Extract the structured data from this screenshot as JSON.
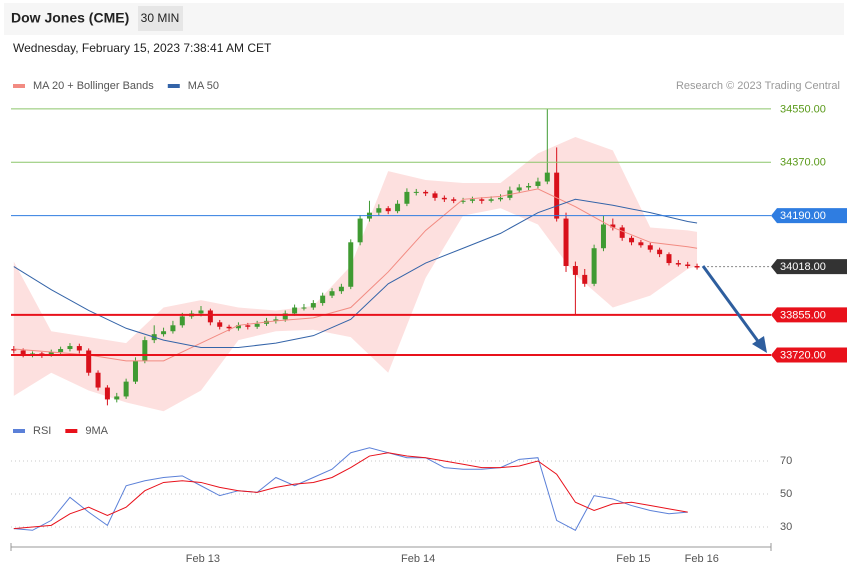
{
  "header": {
    "title": "Dow Jones (CME)",
    "interval": "30 MIN",
    "timestamp": "Wednesday, February 15, 2023 7:38:41 AM CET"
  },
  "chart_data": [
    {
      "type": "candlestick",
      "source": "Research © 2023 Trading Central",
      "up_color": "#3f9a32",
      "down_color": "#d8111b",
      "xlim": [
        -0.3,
        80.9
      ],
      "ylim": [
        33510,
        34580
      ],
      "ohlc": [
        [
          33740,
          33750,
          33725,
          33735
        ],
        [
          33735,
          33742,
          33712,
          33720
        ],
        [
          33720,
          33732,
          33712,
          33725
        ],
        [
          33725,
          33730,
          33710,
          33720
        ],
        [
          33720,
          33738,
          33714,
          33730
        ],
        [
          33730,
          33748,
          33722,
          33740
        ],
        [
          33740,
          33760,
          33732,
          33750
        ],
        [
          33750,
          33758,
          33725,
          33735
        ],
        [
          33735,
          33742,
          33650,
          33660
        ],
        [
          33660,
          33668,
          33600,
          33610
        ],
        [
          33610,
          33618,
          33550,
          33570
        ],
        [
          33570,
          33592,
          33560,
          33580
        ],
        [
          33580,
          33640,
          33572,
          33630
        ],
        [
          33630,
          33712,
          33622,
          33700
        ],
        [
          33700,
          33782,
          33692,
          33770
        ],
        [
          33770,
          33820,
          33760,
          33790
        ],
        [
          33790,
          33812,
          33782,
          33800
        ],
        [
          33800,
          33835,
          33792,
          33820
        ],
        [
          33820,
          33862,
          33812,
          33850
        ],
        [
          33850,
          33870,
          33842,
          33860
        ],
        [
          33860,
          33885,
          33850,
          33870
        ],
        [
          33870,
          33876,
          33820,
          33830
        ],
        [
          33830,
          33838,
          33806,
          33815
        ],
        [
          33815,
          33822,
          33800,
          33810
        ],
        [
          33810,
          33830,
          33802,
          33820
        ],
        [
          33820,
          33828,
          33806,
          33815
        ],
        [
          33815,
          33835,
          33808,
          33825
        ],
        [
          33825,
          33845,
          33818,
          33835
        ],
        [
          33835,
          33850,
          33826,
          33840
        ],
        [
          33840,
          33870,
          33832,
          33860
        ],
        [
          33860,
          33890,
          33852,
          33880
        ],
        [
          33880,
          33892,
          33870,
          33880
        ],
        [
          33880,
          33905,
          33872,
          33895
        ],
        [
          33895,
          33930,
          33886,
          33920
        ],
        [
          33920,
          33945,
          33912,
          33935
        ],
        [
          33935,
          33960,
          33926,
          33950
        ],
        [
          33950,
          34110,
          33942,
          34100
        ],
        [
          34100,
          34192,
          34090,
          34180
        ],
        [
          34180,
          34240,
          34170,
          34200
        ],
        [
          34200,
          34228,
          34190,
          34215
        ],
        [
          34215,
          34222,
          34195,
          34205
        ],
        [
          34205,
          34242,
          34198,
          34230
        ],
        [
          34230,
          34282,
          34222,
          34270
        ],
        [
          34270,
          34280,
          34258,
          34270
        ],
        [
          34270,
          34276,
          34256,
          34265
        ],
        [
          34265,
          34272,
          34240,
          34250
        ],
        [
          34250,
          34258,
          34236,
          34245
        ],
        [
          34245,
          34252,
          34232,
          34240
        ],
        [
          34240,
          34250,
          34230,
          34240
        ],
        [
          34240,
          34254,
          34232,
          34245
        ],
        [
          34245,
          34252,
          34230,
          34240
        ],
        [
          34240,
          34255,
          34234,
          34245
        ],
        [
          34245,
          34262,
          34238,
          34250
        ],
        [
          34250,
          34288,
          34242,
          34275
        ],
        [
          34275,
          34296,
          34266,
          34285
        ],
        [
          34285,
          34300,
          34276,
          34290
        ],
        [
          34290,
          34318,
          34282,
          34305
        ],
        [
          34305,
          34550,
          34296,
          34335
        ],
        [
          34335,
          34420,
          34170,
          34180
        ],
        [
          34180,
          34200,
          34000,
          34020
        ],
        [
          34020,
          34035,
          33858,
          33990
        ],
        [
          33990,
          34010,
          33950,
          33960
        ],
        [
          33960,
          34092,
          33952,
          34080
        ],
        [
          34080,
          34190,
          34070,
          34160
        ],
        [
          34160,
          34180,
          34140,
          34150
        ],
        [
          34150,
          34158,
          34105,
          34115
        ],
        [
          34115,
          34122,
          34090,
          34100
        ],
        [
          34100,
          34108,
          34082,
          34090
        ],
        [
          34090,
          34098,
          34066,
          34075
        ],
        [
          34075,
          34082,
          34050,
          34060
        ],
        [
          34060,
          34066,
          34022,
          34030
        ],
        [
          34030,
          34040,
          34018,
          34025
        ],
        [
          34025,
          34034,
          34012,
          34020
        ],
        [
          34020,
          34028,
          34008,
          34015
        ]
      ],
      "overlays": [
        {
          "name": "MA 20 + Bollinger Bands",
          "color": "#f28b82",
          "band_color": "#fde0df",
          "x": [
            0,
            4,
            8,
            12,
            16,
            20,
            24,
            28,
            32,
            36,
            40,
            44,
            48,
            52,
            56,
            60,
            64,
            68,
            72,
            73
          ],
          "values": [
            33740,
            33730,
            33720,
            33700,
            33700,
            33760,
            33820,
            33835,
            33845,
            33880,
            34000,
            34140,
            34245,
            34255,
            34280,
            34220,
            34150,
            34100,
            34085,
            34080
          ],
          "upper": [
            34035,
            33800,
            33780,
            33760,
            33880,
            33905,
            33880,
            33870,
            33885,
            34020,
            34340,
            34310,
            34300,
            34300,
            34400,
            34455,
            34410,
            34150,
            34140,
            34135
          ],
          "lower": [
            33582,
            33660,
            33600,
            33560,
            33530,
            33600,
            33770,
            33800,
            33805,
            33780,
            33660,
            33980,
            34190,
            34215,
            34160,
            33990,
            33880,
            33920,
            34010,
            34020
          ]
        },
        {
          "name": "MA 50",
          "color": "#3464a8",
          "x": [
            0,
            4,
            8,
            12,
            16,
            20,
            24,
            28,
            32,
            36,
            40,
            44,
            48,
            52,
            56,
            60,
            64,
            68,
            72,
            73
          ],
          "values": [
            34018,
            33940,
            33870,
            33810,
            33770,
            33745,
            33745,
            33760,
            33785,
            33840,
            33960,
            34030,
            34080,
            34130,
            34200,
            34245,
            34225,
            34200,
            34170,
            34165
          ]
        }
      ],
      "levels": [
        {
          "value": 34550,
          "label": "34550.00",
          "color": "#8cc56a",
          "text_color": "#5a9a1a",
          "box": false,
          "line_style": "solid",
          "line_width": 1
        },
        {
          "value": 34370,
          "label": "34370.00",
          "color": "#8cc56a",
          "text_color": "#5a9a1a",
          "box": false,
          "line_style": "solid",
          "line_width": 1
        },
        {
          "value": 34190,
          "label": "34190.00",
          "color": "#2f7de1",
          "text_color": "#ffffff",
          "box": true,
          "line_style": "solid",
          "line_width": 1
        },
        {
          "value": 34018,
          "label": "34018.00",
          "color": "#333333",
          "text_color": "#ffffff",
          "box": true,
          "line_style": "dotted",
          "line_width": 1
        },
        {
          "value": 33855,
          "label": "33855.00",
          "color": "#e8111b",
          "text_color": "#ffffff",
          "box": true,
          "line_style": "solid",
          "line_width": 2
        },
        {
          "value": 33720,
          "label": "33720.00",
          "color": "#e8111b",
          "text_color": "#ffffff",
          "box": true,
          "line_style": "solid",
          "line_width": 2
        }
      ]
    },
    {
      "type": "line",
      "xlim": [
        -0.3,
        80.9
      ],
      "ylim": [
        20,
        80
      ],
      "yticks": [
        30,
        50,
        70
      ],
      "grid": true,
      "xticks": [
        {
          "value": 20.2,
          "label": "Feb 13"
        },
        {
          "value": 43.2,
          "label": "Feb 14"
        },
        {
          "value": 66.2,
          "label": "Feb 15"
        },
        {
          "value": 73.5,
          "label": "Feb 16"
        }
      ],
      "x": [
        0,
        2,
        4,
        6,
        8,
        10,
        12,
        14,
        16,
        18,
        20,
        22,
        24,
        26,
        28,
        30,
        32,
        34,
        36,
        38,
        40,
        42,
        44,
        46,
        48,
        50,
        52,
        54,
        56,
        58,
        60,
        62,
        64,
        66,
        68,
        70,
        72
      ],
      "series": [
        {
          "name": "RSI",
          "color": "#5b80d8",
          "values": [
            29,
            28,
            34,
            48,
            39,
            31,
            55,
            58,
            60,
            61,
            55,
            49,
            52,
            51,
            60,
            55,
            60,
            65,
            75,
            78,
            75,
            72,
            72,
            66,
            65,
            65,
            66,
            71,
            72,
            34,
            28,
            49,
            47,
            43,
            40,
            38,
            39
          ]
        },
        {
          "name": "9MA",
          "color": "#e8111b",
          "values": [
            29,
            30,
            31,
            38,
            42,
            37,
            42,
            52,
            57,
            58,
            57,
            54,
            52,
            51,
            54,
            56,
            57,
            60,
            66,
            73,
            75,
            73,
            72,
            70,
            68,
            66,
            66,
            67,
            70,
            62,
            45,
            40,
            44,
            45,
            43,
            41,
            39
          ]
        }
      ]
    }
  ]
}
